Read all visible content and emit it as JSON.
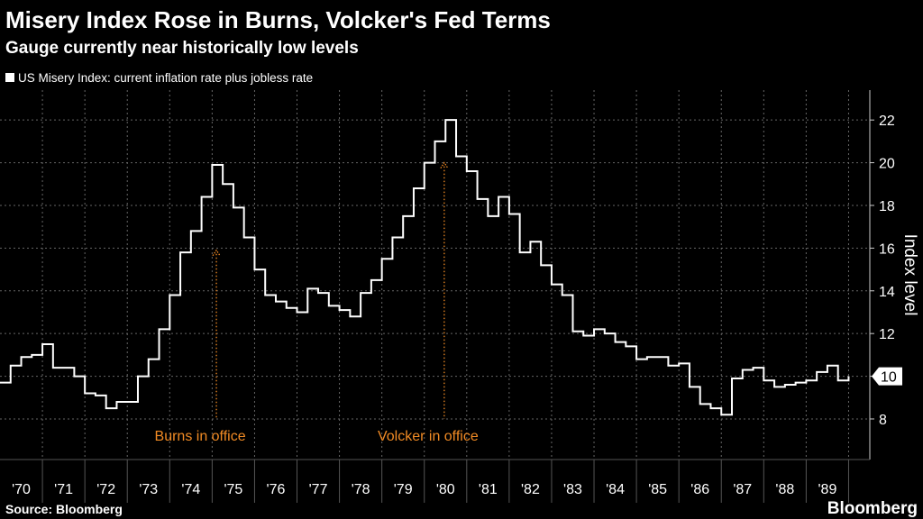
{
  "chart_data": {
    "type": "line",
    "title": "Misery Index Rose in Burns, Volcker's Fed Terms",
    "subtitle": "Gauge currently near historically low levels",
    "y_axis_label": "Index level",
    "source": "Source: Bloomberg",
    "brand": "Bloomberg",
    "step": true,
    "grid": true,
    "x": [
      1970.0,
      1970.25,
      1970.5,
      1970.75,
      1971.0,
      1971.25,
      1971.5,
      1971.75,
      1972.0,
      1972.25,
      1972.5,
      1972.75,
      1973.0,
      1973.25,
      1973.5,
      1973.75,
      1974.0,
      1974.25,
      1974.5,
      1974.75,
      1975.0,
      1975.25,
      1975.5,
      1975.75,
      1976.0,
      1976.25,
      1976.5,
      1976.75,
      1977.0,
      1977.25,
      1977.5,
      1977.75,
      1978.0,
      1978.25,
      1978.5,
      1978.75,
      1979.0,
      1979.25,
      1979.5,
      1979.75,
      1980.0,
      1980.25,
      1980.5,
      1980.75,
      1981.0,
      1981.25,
      1981.5,
      1981.75,
      1982.0,
      1982.25,
      1982.5,
      1982.75,
      1983.0,
      1983.25,
      1983.5,
      1983.75,
      1984.0,
      1984.25,
      1984.5,
      1984.75,
      1985.0,
      1985.25,
      1985.5,
      1985.75,
      1986.0,
      1986.25,
      1986.5,
      1986.75,
      1987.0,
      1987.25,
      1987.5,
      1987.75,
      1988.0,
      1988.25,
      1988.5,
      1988.75,
      1989.0,
      1989.25,
      1989.5,
      1989.75,
      1990.0
    ],
    "series": [
      {
        "name": "US Misery Index: current inflation rate plus jobless rate",
        "color": "#ffffff",
        "values": [
          9.7,
          10.5,
          10.9,
          11.0,
          11.5,
          10.4,
          10.4,
          10.0,
          9.2,
          9.1,
          8.5,
          8.8,
          8.8,
          10.0,
          10.8,
          12.2,
          13.8,
          15.8,
          16.8,
          18.4,
          19.9,
          19.0,
          17.9,
          16.5,
          15.0,
          13.8,
          13.5,
          13.2,
          13.0,
          14.1,
          13.9,
          13.3,
          13.1,
          12.8,
          13.9,
          14.5,
          15.5,
          16.5,
          17.5,
          18.8,
          20.0,
          21.0,
          22.0,
          20.3,
          19.6,
          18.3,
          17.5,
          18.4,
          17.6,
          15.8,
          16.3,
          15.2,
          14.3,
          13.8,
          12.1,
          11.9,
          12.2,
          12.0,
          11.6,
          11.4,
          10.8,
          10.9,
          10.9,
          10.5,
          10.6,
          9.5,
          8.7,
          8.5,
          8.2,
          9.9,
          10.3,
          10.4,
          9.8,
          9.5,
          9.6,
          9.7,
          9.8,
          10.2,
          10.5,
          9.8,
          10
        ]
      }
    ],
    "xlim": [
      1970,
      1990.5
    ],
    "xticks": [
      {
        "value": 1970.5,
        "label": "'70"
      },
      {
        "value": 1971.5,
        "label": "'71"
      },
      {
        "value": 1972.5,
        "label": "'72"
      },
      {
        "value": 1973.5,
        "label": "'73"
      },
      {
        "value": 1974.5,
        "label": "'74"
      },
      {
        "value": 1975.5,
        "label": "'75"
      },
      {
        "value": 1976.5,
        "label": "'76"
      },
      {
        "value": 1977.5,
        "label": "'77"
      },
      {
        "value": 1978.5,
        "label": "'78"
      },
      {
        "value": 1979.5,
        "label": "'79"
      },
      {
        "value": 1980.5,
        "label": "'80"
      },
      {
        "value": 1981.5,
        "label": "'81"
      },
      {
        "value": 1982.5,
        "label": "'82"
      },
      {
        "value": 1983.5,
        "label": "'83"
      },
      {
        "value": 1984.5,
        "label": "'84"
      },
      {
        "value": 1985.5,
        "label": "'85"
      },
      {
        "value": 1986.5,
        "label": "'86"
      },
      {
        "value": 1987.5,
        "label": "'87"
      },
      {
        "value": 1988.5,
        "label": "'88"
      },
      {
        "value": 1989.5,
        "label": "'89"
      }
    ],
    "xgrid": [
      1971,
      1972,
      1973,
      1974,
      1975,
      1976,
      1977,
      1978,
      1979,
      1980,
      1981,
      1982,
      1983,
      1984,
      1985,
      1986,
      1987,
      1988,
      1989,
      1990
    ],
    "ylim": [
      6.1,
      23.4
    ],
    "yticks": [
      8,
      10,
      12,
      14,
      16,
      18,
      20,
      22
    ],
    "annotations": [
      {
        "text": "Burns in office",
        "x": 1975.1,
        "y": 15.9,
        "y_tail": 8.0,
        "color": "#f08a24"
      },
      {
        "text": "Volcker in office",
        "x": 1980.47,
        "y": 20.0,
        "y_tail": 8.0,
        "color": "#f08a24"
      }
    ]
  }
}
